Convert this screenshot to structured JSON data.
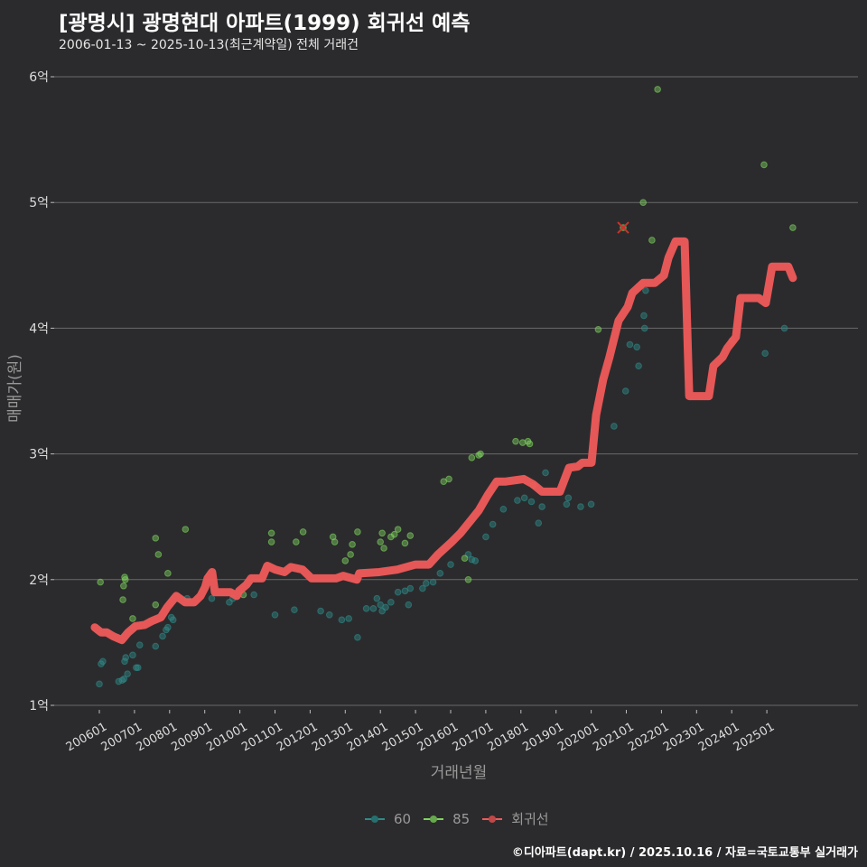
{
  "header": {
    "title": "[광명시] 광명현대 아파트(1999) 회귀선 예측",
    "subtitle": "2006-01-13 ~ 2025-10-13(최근계약일) 전체 거래건"
  },
  "footer": "©디아파트(dapt.kr) / 2025.10.16 / 자료=국토교통부 실거래가",
  "chart_data": {
    "type": "scatter",
    "title": "[광명시] 광명현대 아파트(1999) 회귀선 예측",
    "xlabel": "거래년월",
    "ylabel": "매매가(원)",
    "xlim": [
      2005.5,
      2028.0
    ],
    "ylim": [
      1,
      6
    ],
    "grid": true,
    "legend_position": "bottom",
    "y_ticks": [
      {
        "value": 1,
        "label": "1억"
      },
      {
        "value": 2,
        "label": "2억"
      },
      {
        "value": 3,
        "label": "3억"
      },
      {
        "value": 4,
        "label": "4억"
      },
      {
        "value": 5,
        "label": "5억"
      },
      {
        "value": 6,
        "label": "6억"
      }
    ],
    "x_ticks": [
      {
        "value": 2006,
        "label": "200601"
      },
      {
        "value": 2007,
        "label": "200701"
      },
      {
        "value": 2008,
        "label": "200801"
      },
      {
        "value": 2009,
        "label": "200901"
      },
      {
        "value": 2010,
        "label": "201001"
      },
      {
        "value": 2011,
        "label": "201101"
      },
      {
        "value": 2012,
        "label": "201201"
      },
      {
        "value": 2013,
        "label": "201301"
      },
      {
        "value": 2014,
        "label": "201401"
      },
      {
        "value": 2015,
        "label": "201501"
      },
      {
        "value": 2016,
        "label": "201601"
      },
      {
        "value": 2017,
        "label": "201701"
      },
      {
        "value": 2018,
        "label": "201801"
      },
      {
        "value": 2019,
        "label": "201901"
      },
      {
        "value": 2020,
        "label": "202001"
      },
      {
        "value": 2021,
        "label": "202101"
      },
      {
        "value": 2022,
        "label": "202201"
      },
      {
        "value": 2023,
        "label": "202301"
      },
      {
        "value": 2024,
        "label": "202401"
      },
      {
        "value": 2025,
        "label": "202501"
      }
    ],
    "series": [
      {
        "name": "60",
        "color": "#2e8c8a",
        "type": "scatter",
        "points": [
          [
            2006.0,
            1.17
          ],
          [
            2006.05,
            1.33
          ],
          [
            2006.1,
            1.35
          ],
          [
            2006.55,
            1.19
          ],
          [
            2006.65,
            1.2
          ],
          [
            2006.7,
            1.21
          ],
          [
            2006.72,
            1.35
          ],
          [
            2006.75,
            1.38
          ],
          [
            2006.8,
            1.25
          ],
          [
            2006.95,
            1.4
          ],
          [
            2007.05,
            1.3
          ],
          [
            2007.1,
            1.3
          ],
          [
            2007.15,
            1.48
          ],
          [
            2007.6,
            1.47
          ],
          [
            2007.8,
            1.55
          ],
          [
            2007.9,
            1.6
          ],
          [
            2007.95,
            1.62
          ],
          [
            2008.05,
            1.7
          ],
          [
            2008.1,
            1.68
          ],
          [
            2008.5,
            1.85
          ],
          [
            2009.2,
            1.85
          ],
          [
            2009.7,
            1.82
          ],
          [
            2009.8,
            1.85
          ],
          [
            2010.4,
            1.88
          ],
          [
            2011.0,
            1.72
          ],
          [
            2011.55,
            1.76
          ],
          [
            2012.3,
            1.75
          ],
          [
            2012.55,
            1.72
          ],
          [
            2012.9,
            1.68
          ],
          [
            2013.1,
            1.69
          ],
          [
            2013.35,
            1.54
          ],
          [
            2013.6,
            1.77
          ],
          [
            2013.8,
            1.77
          ],
          [
            2013.9,
            1.85
          ],
          [
            2014.0,
            1.8
          ],
          [
            2014.05,
            1.75
          ],
          [
            2014.15,
            1.78
          ],
          [
            2014.3,
            1.82
          ],
          [
            2014.5,
            1.9
          ],
          [
            2014.7,
            1.91
          ],
          [
            2014.8,
            1.8
          ],
          [
            2014.85,
            1.93
          ],
          [
            2015.2,
            1.93
          ],
          [
            2015.3,
            1.97
          ],
          [
            2015.5,
            1.98
          ],
          [
            2015.7,
            2.05
          ],
          [
            2016.0,
            2.12
          ],
          [
            2016.5,
            2.2
          ],
          [
            2016.6,
            2.16
          ],
          [
            2016.7,
            2.15
          ],
          [
            2017.0,
            2.34
          ],
          [
            2017.2,
            2.44
          ],
          [
            2017.5,
            2.56
          ],
          [
            2017.9,
            2.63
          ],
          [
            2018.1,
            2.65
          ],
          [
            2018.3,
            2.62
          ],
          [
            2018.5,
            2.45
          ],
          [
            2018.6,
            2.58
          ],
          [
            2018.7,
            2.85
          ],
          [
            2019.3,
            2.6
          ],
          [
            2019.35,
            2.65
          ],
          [
            2019.7,
            2.58
          ],
          [
            2020.0,
            2.6
          ],
          [
            2020.65,
            3.22
          ],
          [
            2020.98,
            3.5
          ],
          [
            2021.1,
            3.87
          ],
          [
            2021.3,
            3.85
          ],
          [
            2021.35,
            3.7
          ],
          [
            2021.5,
            4.1
          ],
          [
            2021.52,
            4.0
          ],
          [
            2021.55,
            4.3
          ],
          [
            2024.0,
            3.9
          ],
          [
            2024.95,
            3.8
          ],
          [
            2025.5,
            4.0
          ]
        ]
      },
      {
        "name": "85",
        "color": "#7fd35f",
        "type": "scatter",
        "points": [
          [
            2006.03,
            1.98
          ],
          [
            2006.67,
            1.84
          ],
          [
            2006.69,
            1.95
          ],
          [
            2006.72,
            2.02
          ],
          [
            2006.74,
            2.0
          ],
          [
            2006.95,
            1.69
          ],
          [
            2007.6,
            2.33
          ],
          [
            2007.68,
            2.2
          ],
          [
            2007.95,
            2.05
          ],
          [
            2008.45,
            2.4
          ],
          [
            2007.6,
            1.8
          ],
          [
            2010.1,
            1.88
          ],
          [
            2010.9,
            2.3
          ],
          [
            2010.9,
            2.37
          ],
          [
            2011.6,
            2.3
          ],
          [
            2011.8,
            2.38
          ],
          [
            2012.65,
            2.34
          ],
          [
            2012.7,
            2.3
          ],
          [
            2013.0,
            2.15
          ],
          [
            2013.15,
            2.2
          ],
          [
            2013.2,
            2.28
          ],
          [
            2013.35,
            2.38
          ],
          [
            2014.0,
            2.3
          ],
          [
            2014.05,
            2.37
          ],
          [
            2014.1,
            2.25
          ],
          [
            2014.3,
            2.34
          ],
          [
            2014.4,
            2.36
          ],
          [
            2014.5,
            2.4
          ],
          [
            2014.7,
            2.29
          ],
          [
            2014.85,
            2.35
          ],
          [
            2015.8,
            2.78
          ],
          [
            2015.95,
            2.8
          ],
          [
            2016.4,
            2.17
          ],
          [
            2016.5,
            2.0
          ],
          [
            2016.6,
            2.97
          ],
          [
            2016.8,
            2.99
          ],
          [
            2016.85,
            3.0
          ],
          [
            2017.85,
            3.1
          ],
          [
            2018.05,
            3.09
          ],
          [
            2018.2,
            3.1
          ],
          [
            2018.25,
            3.08
          ],
          [
            2018.35,
            2.75
          ],
          [
            2020.2,
            3.99
          ],
          [
            2020.91,
            4.8
          ],
          [
            2021.48,
            5.0
          ],
          [
            2021.73,
            4.7
          ],
          [
            2021.89,
            5.9
          ],
          [
            2024.92,
            5.3
          ],
          [
            2025.74,
            4.8
          ]
        ]
      },
      {
        "name": "회귀선",
        "color": "#f05a5a",
        "type": "line",
        "points": [
          [
            2005.87,
            1.62
          ],
          [
            2006.05,
            1.58
          ],
          [
            2006.21,
            1.58
          ],
          [
            2006.39,
            1.55
          ],
          [
            2006.64,
            1.52
          ],
          [
            2006.82,
            1.58
          ],
          [
            2007.03,
            1.63
          ],
          [
            2007.29,
            1.64
          ],
          [
            2007.49,
            1.67
          ],
          [
            2007.75,
            1.7
          ],
          [
            2007.93,
            1.78
          ],
          [
            2008.19,
            1.87
          ],
          [
            2008.44,
            1.82
          ],
          [
            2008.7,
            1.82
          ],
          [
            2008.88,
            1.87
          ],
          [
            2009.01,
            1.94
          ],
          [
            2009.08,
            2.01
          ],
          [
            2009.21,
            2.06
          ],
          [
            2009.29,
            1.9
          ],
          [
            2009.73,
            1.9
          ],
          [
            2009.91,
            1.87
          ],
          [
            2009.98,
            1.91
          ],
          [
            2010.19,
            1.96
          ],
          [
            2010.32,
            2.01
          ],
          [
            2010.63,
            2.01
          ],
          [
            2010.78,
            2.11
          ],
          [
            2011.01,
            2.08
          ],
          [
            2011.27,
            2.06
          ],
          [
            2011.45,
            2.1
          ],
          [
            2011.78,
            2.08
          ],
          [
            2012.04,
            2.01
          ],
          [
            2012.43,
            2.01
          ],
          [
            2012.74,
            2.01
          ],
          [
            2012.94,
            2.03
          ],
          [
            2013.33,
            2.0
          ],
          [
            2013.4,
            2.05
          ],
          [
            2013.97,
            2.06
          ],
          [
            2014.48,
            2.08
          ],
          [
            2015.0,
            2.12
          ],
          [
            2015.38,
            2.12
          ],
          [
            2015.64,
            2.2
          ],
          [
            2016.03,
            2.3
          ],
          [
            2016.28,
            2.37
          ],
          [
            2016.54,
            2.46
          ],
          [
            2016.8,
            2.55
          ],
          [
            2017.05,
            2.67
          ],
          [
            2017.31,
            2.78
          ],
          [
            2017.57,
            2.78
          ],
          [
            2018.08,
            2.8
          ],
          [
            2018.34,
            2.76
          ],
          [
            2018.6,
            2.7
          ],
          [
            2019.11,
            2.7
          ],
          [
            2019.37,
            2.89
          ],
          [
            2019.62,
            2.9
          ],
          [
            2019.75,
            2.93
          ],
          [
            2020.01,
            2.93
          ],
          [
            2020.14,
            3.31
          ],
          [
            2020.34,
            3.59
          ],
          [
            2020.52,
            3.77
          ],
          [
            2020.78,
            4.06
          ],
          [
            2021.04,
            4.17
          ],
          [
            2021.17,
            4.28
          ],
          [
            2021.48,
            4.36
          ],
          [
            2021.81,
            4.36
          ],
          [
            2022.07,
            4.42
          ],
          [
            2022.2,
            4.56
          ],
          [
            2022.4,
            4.69
          ],
          [
            2022.66,
            4.69
          ],
          [
            2022.79,
            3.46
          ],
          [
            2023.35,
            3.46
          ],
          [
            2023.48,
            3.7
          ],
          [
            2023.74,
            3.77
          ],
          [
            2023.87,
            3.84
          ],
          [
            2024.12,
            3.93
          ],
          [
            2024.25,
            4.24
          ],
          [
            2024.77,
            4.24
          ],
          [
            2024.97,
            4.2
          ],
          [
            2025.15,
            4.49
          ],
          [
            2025.61,
            4.49
          ],
          [
            2025.74,
            4.4
          ]
        ]
      }
    ],
    "outlier": {
      "x": 2020.91,
      "y": 4.8,
      "marker": "x",
      "color": "#d0302a"
    }
  }
}
